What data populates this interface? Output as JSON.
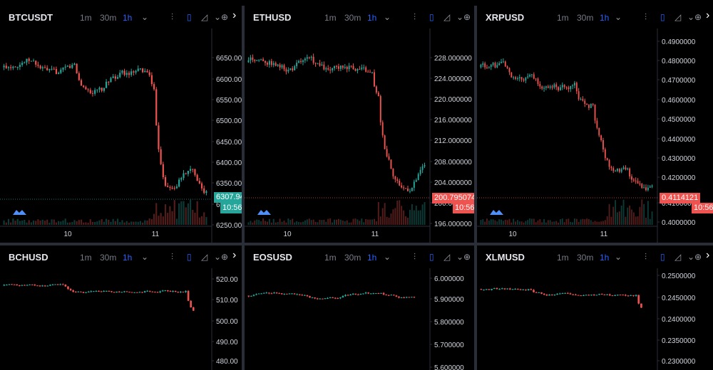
{
  "colors": {
    "up": "#26a69a",
    "down": "#ef5350",
    "accent": "#2962ff",
    "grid": "#1c1f26",
    "axis": "#2a2e39",
    "text": "#d1d4dc"
  },
  "timeframes": [
    "1m",
    "30m",
    "1h"
  ],
  "active_timeframe": "1h",
  "icons": [
    "indicators-icon",
    "candles-icon",
    "area-chart-icon",
    "chevron-down-icon",
    "add-icon",
    "arrow-right-icon",
    "logo-icon"
  ],
  "panels": [
    {
      "symbol": "BTCUSDT",
      "y_ticks": [
        "6650.00",
        "6600.00",
        "6550.00",
        "6500.00",
        "6450.00",
        "6400.00",
        "6350.00",
        "6300.00",
        "6250.00"
      ],
      "x_ticks": [
        "10",
        "11"
      ],
      "last_price": "6307.94",
      "last_time": "10:56",
      "last_color": "up"
    },
    {
      "symbol": "ETHUSD",
      "y_ticks": [
        "228.000000",
        "224.000000",
        "220.000000",
        "216.000000",
        "212.000000",
        "208.000000",
        "204.000000",
        "200.000000",
        "196.000000"
      ],
      "x_ticks": [
        "10",
        "11"
      ],
      "last_price": "200.795074",
      "last_time": "10:56",
      "last_color": "down"
    },
    {
      "symbol": "XRPUSD",
      "y_ticks": [
        "0.4900000",
        "0.4800000",
        "0.4700000",
        "0.4600000",
        "0.4500000",
        "0.4400000",
        "0.4300000",
        "0.4200000",
        "0.4100000",
        "0.4000000"
      ],
      "x_ticks": [
        "10",
        "11"
      ],
      "last_price": "0.4114121",
      "last_time": "10:56",
      "last_color": "down"
    },
    {
      "symbol": "BCHUSD",
      "y_ticks": [
        "520.00",
        "510.00",
        "500.00",
        "490.00",
        "480.00"
      ],
      "x_ticks": []
    },
    {
      "symbol": "EOSUSD",
      "y_ticks": [
        "6.000000",
        "5.900000",
        "5.800000",
        "5.700000",
        "5.600000"
      ],
      "x_ticks": []
    },
    {
      "symbol": "XLMUSD",
      "y_ticks": [
        "0.2500000",
        "0.2450000",
        "0.2400000",
        "0.2350000",
        "0.2300000"
      ],
      "x_ticks": []
    }
  ]
}
